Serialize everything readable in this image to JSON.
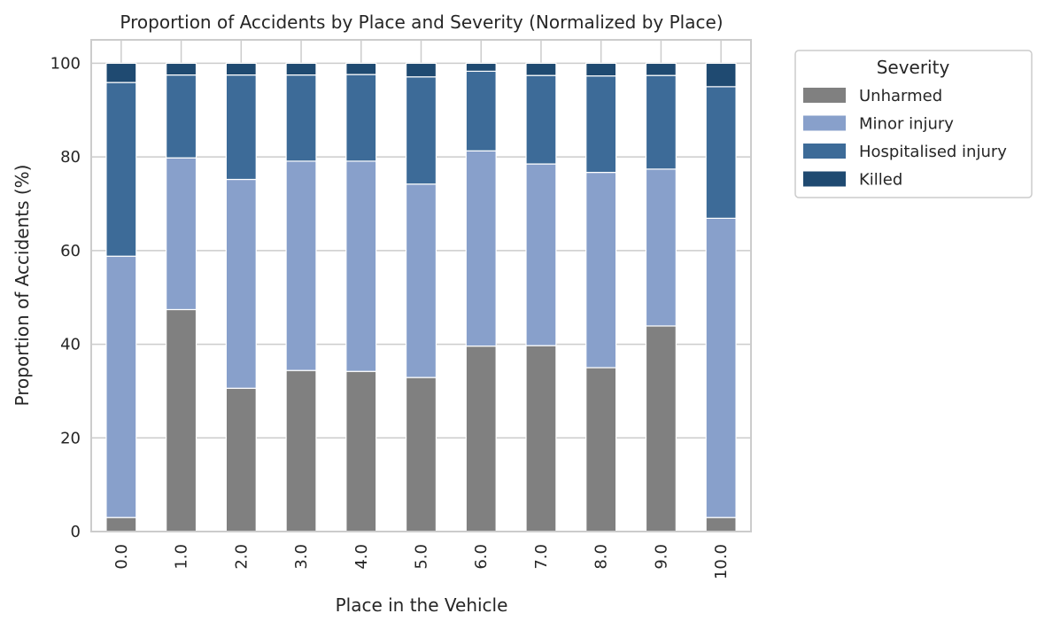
{
  "chart_data": {
    "type": "bar",
    "stacked": true,
    "title": "Proportion of Accidents by Place and Severity (Normalized by Place)",
    "xlabel": "Place in the Vehicle",
    "ylabel": "Proportion of Accidents (%)",
    "ylim": [
      0,
      105
    ],
    "yticks": [
      0,
      20,
      40,
      60,
      80,
      100
    ],
    "grid": true,
    "categories": [
      "0.0",
      "1.0",
      "2.0",
      "3.0",
      "4.0",
      "5.0",
      "6.0",
      "7.0",
      "8.0",
      "9.0",
      "10.0"
    ],
    "legend": {
      "title": "Severity",
      "placement": "outside top-right"
    },
    "series": [
      {
        "name": "Unharmed",
        "color": "#808080",
        "values": [
          3.0,
          47.4,
          30.6,
          34.4,
          34.2,
          32.9,
          39.6,
          39.7,
          35.0,
          43.9,
          3.0
        ]
      },
      {
        "name": "Minor injury",
        "color": "#88a0cb",
        "values": [
          55.8,
          32.4,
          44.6,
          44.7,
          44.9,
          41.3,
          41.7,
          38.8,
          41.7,
          33.5,
          63.9
        ]
      },
      {
        "name": "Hospitalised injury",
        "color": "#3d6b98",
        "values": [
          37.1,
          17.7,
          22.3,
          18.4,
          18.5,
          22.9,
          17.0,
          18.9,
          20.6,
          20.0,
          28.1
        ]
      },
      {
        "name": "Killed",
        "color": "#1f4a71",
        "values": [
          4.1,
          2.5,
          2.5,
          2.5,
          2.4,
          2.9,
          1.7,
          2.6,
          2.7,
          2.6,
          5.0
        ]
      }
    ]
  }
}
